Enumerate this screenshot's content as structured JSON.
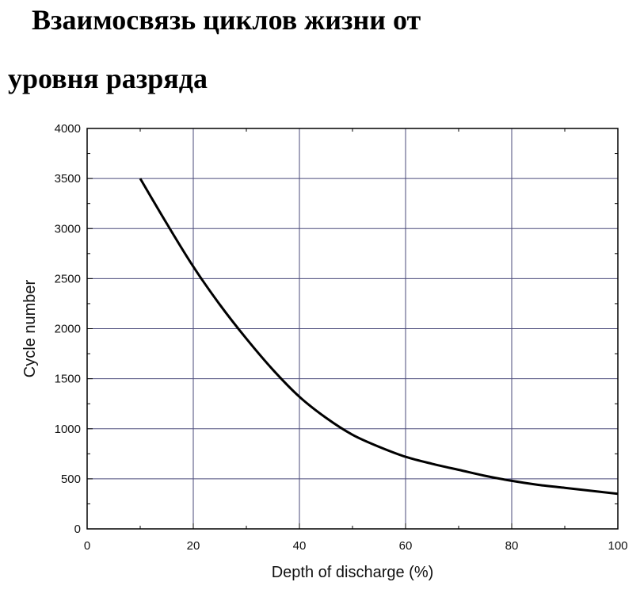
{
  "title_lines": [
    "Взаимосвязь циклов жизни от",
    "уровня разряда"
  ],
  "chart_data": {
    "type": "line",
    "xlabel": "Depth of discharge (%)",
    "ylabel": "Cycle number",
    "xlim": [
      0,
      100
    ],
    "ylim": [
      0,
      4000
    ],
    "xticks": [
      0,
      20,
      40,
      60,
      80,
      100
    ],
    "yticks": [
      0,
      500,
      1000,
      1500,
      2000,
      2500,
      3000,
      3500,
      4000
    ],
    "grid": true,
    "colors": {
      "line": "#000000",
      "grid": "#4a4a7a",
      "frame": "#000000"
    },
    "series": [
      {
        "x": [
          10,
          15,
          20,
          25,
          30,
          35,
          40,
          45,
          50,
          55,
          60,
          65,
          70,
          75,
          80,
          85,
          90,
          95,
          100
        ],
        "values": [
          3500,
          3050,
          2620,
          2240,
          1900,
          1590,
          1320,
          1110,
          940,
          820,
          720,
          650,
          590,
          530,
          480,
          440,
          410,
          380,
          350
        ]
      }
    ]
  }
}
